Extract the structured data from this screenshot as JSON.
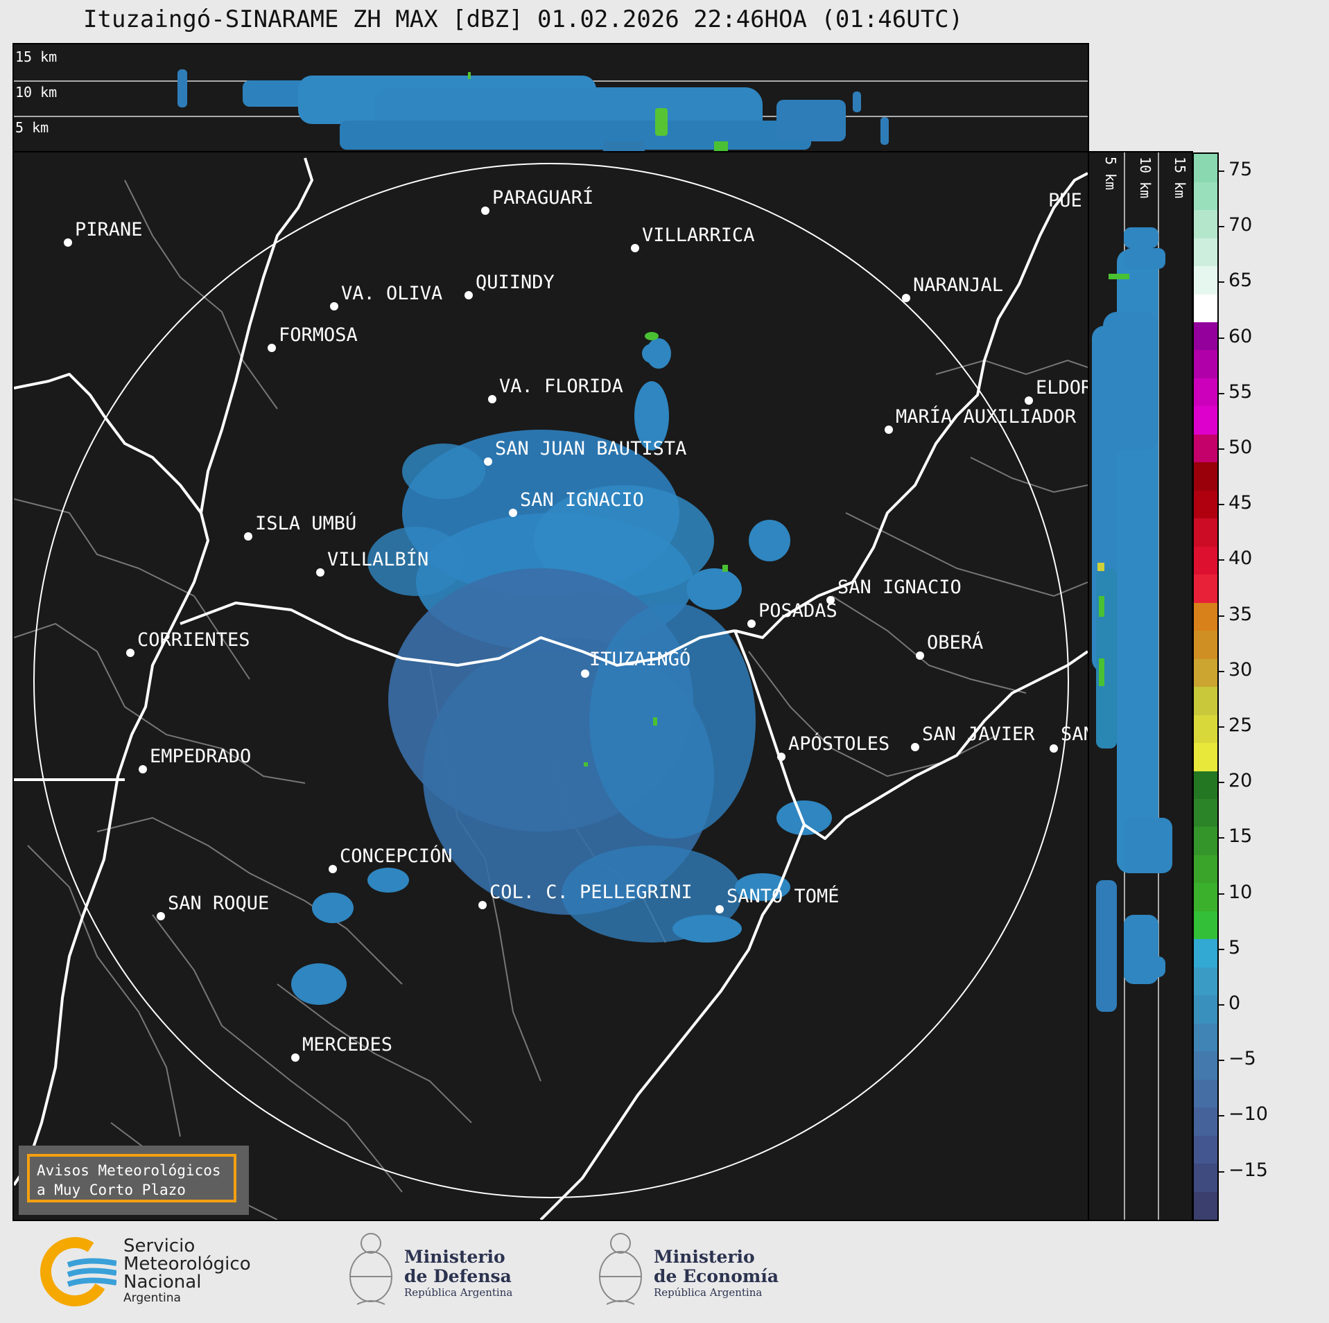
{
  "title": "Ituzaingó-SINARAME ZH MAX [dBZ] 01.02.2026 22:46HOA (01:46UTC)",
  "top_profile": {
    "height_labels": [
      "15 km",
      "10 km",
      "5 km"
    ]
  },
  "side_profile": {
    "height_labels": [
      "5 km",
      "10 km",
      "15 km"
    ]
  },
  "colorbar": {
    "ticks": [
      "75",
      "70",
      "65",
      "60",
      "55",
      "50",
      "45",
      "40",
      "35",
      "30",
      "25",
      "20",
      "15",
      "10",
      "5",
      "0",
      "−5",
      "−10",
      "−15"
    ],
    "colors": [
      "#3b3f6e",
      "#3f4a7f",
      "#44568f",
      "#45629b",
      "#456ea5",
      "#4479ae",
      "#3f84b5",
      "#3a90bc",
      "#3a9cc4",
      "#31a9d2",
      "#33c038",
      "#3bb02d",
      "#3aa42a",
      "#33952a",
      "#2c8428",
      "#237723",
      "#e8e83a",
      "#d8d83a",
      "#c8c83a",
      "#cba530",
      "#d08f22",
      "#d8801a",
      "#e82038",
      "#dd1030",
      "#cc0c25",
      "#b00010",
      "#99000a",
      "#c4006a",
      "#dd00cc",
      "#cc00bb",
      "#b000aa",
      "#94009b",
      "#ffffff",
      "#e6f7ef",
      "#cdeedd",
      "#b4e6cc",
      "#9adfbb",
      "#89d8b0"
    ]
  },
  "map": {
    "type": "radar reflectivity map",
    "radar": "ITUZAINGÓ",
    "cities": [
      {
        "name": "PARAGUARÍ"
      },
      {
        "name": "PIRANE"
      },
      {
        "name": "VILLARRICA"
      },
      {
        "name": "QUIINDY"
      },
      {
        "name": "VA. OLIVA"
      },
      {
        "name": "NARANJAL"
      },
      {
        "name": "FORMOSA"
      },
      {
        "name": "VA. FLORIDA"
      },
      {
        "name": "ELDOR"
      },
      {
        "name": "MARÍA AUXILIADOR"
      },
      {
        "name": "SAN JUAN BAUTISTA"
      },
      {
        "name": "SAN IGNACIO"
      },
      {
        "name": "ISLA UMBÚ"
      },
      {
        "name": "VILLALBÍN"
      },
      {
        "name": "SAN IGNACIO"
      },
      {
        "name": "POSADAS"
      },
      {
        "name": "CORRIENTES"
      },
      {
        "name": "ITUZAINGÓ"
      },
      {
        "name": "OBERÁ"
      },
      {
        "name": "APÓSTOLES"
      },
      {
        "name": "SAN JAVIER"
      },
      {
        "name": "SAN"
      },
      {
        "name": "EMPEDRADO"
      },
      {
        "name": "CONCEPCIÓN"
      },
      {
        "name": "COL. C. PELLEGRINI"
      },
      {
        "name": "SANTO TOMÉ"
      },
      {
        "name": "SAN ROQUE"
      },
      {
        "name": "MERCEDES"
      },
      {
        "name": "PUE"
      }
    ]
  },
  "warning_box": {
    "line1": "Avisos Meteorológicos",
    "line2": "a Muy Corto Plazo"
  },
  "footer": {
    "smn": {
      "line1": "Servicio",
      "line2": "Meteorológico",
      "line3": "Nacional",
      "line4": "Argentina"
    },
    "defensa": {
      "line1": "Ministerio",
      "line2": "de Defensa",
      "line3": "República Argentina"
    },
    "economia": {
      "line1": "Ministerio",
      "line2": "de Economía",
      "line3": "República Argentina"
    },
    "colors": {
      "smn_yellow": "#f5a800",
      "smn_blue": "#3aa0d8",
      "ministry_navy": "#2c3350"
    }
  }
}
